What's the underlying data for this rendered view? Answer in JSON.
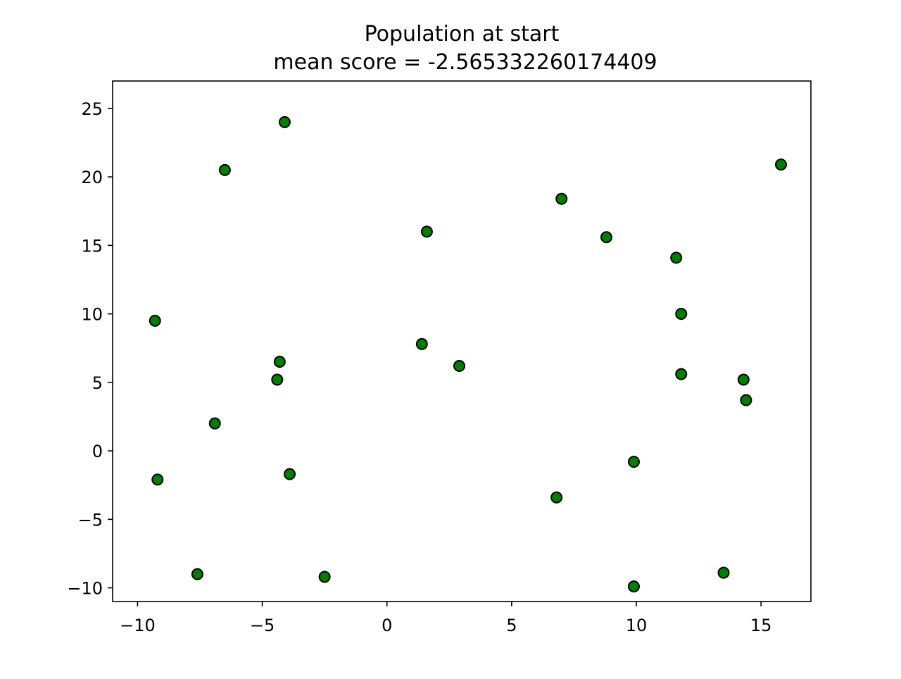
{
  "chart_data": {
    "type": "scatter",
    "title": "Population at start",
    "subtitle": "mean score = -2.565332260174409",
    "xlabel": "",
    "ylabel": "",
    "xlim": [
      -11,
      17
    ],
    "ylim": [
      -11,
      27
    ],
    "x_ticks": [
      -10,
      -5,
      0,
      5,
      10,
      15
    ],
    "x_tick_labels": [
      "−10",
      "−5",
      "0",
      "5",
      "10",
      "15"
    ],
    "y_ticks": [
      -10,
      -5,
      0,
      5,
      10,
      15,
      20,
      25
    ],
    "y_tick_labels": [
      "−10",
      "−5",
      "0",
      "5",
      "10",
      "15",
      "20",
      "25"
    ],
    "grid": false,
    "marker_fill": "#008000",
    "marker_edge": "#000000",
    "points": [
      {
        "x": -4.1,
        "y": 24.0
      },
      {
        "x": -6.5,
        "y": 20.5
      },
      {
        "x": 15.8,
        "y": 20.9
      },
      {
        "x": 7.0,
        "y": 18.4
      },
      {
        "x": 1.6,
        "y": 16.0
      },
      {
        "x": 8.8,
        "y": 15.6
      },
      {
        "x": 11.6,
        "y": 14.1
      },
      {
        "x": -9.3,
        "y": 9.5
      },
      {
        "x": 11.8,
        "y": 10.0
      },
      {
        "x": 1.4,
        "y": 7.8
      },
      {
        "x": 2.9,
        "y": 6.2
      },
      {
        "x": -4.3,
        "y": 6.5
      },
      {
        "x": -4.4,
        "y": 5.2
      },
      {
        "x": 11.8,
        "y": 5.6
      },
      {
        "x": 14.3,
        "y": 5.2
      },
      {
        "x": 14.4,
        "y": 3.7
      },
      {
        "x": -6.9,
        "y": 2.0
      },
      {
        "x": -9.2,
        "y": -2.1
      },
      {
        "x": -3.9,
        "y": -1.7
      },
      {
        "x": 9.9,
        "y": -0.8
      },
      {
        "x": 6.8,
        "y": -3.4
      },
      {
        "x": -7.6,
        "y": -9.0
      },
      {
        "x": -2.5,
        "y": -9.2
      },
      {
        "x": 9.9,
        "y": -9.9
      },
      {
        "x": 13.5,
        "y": -8.9
      }
    ]
  }
}
